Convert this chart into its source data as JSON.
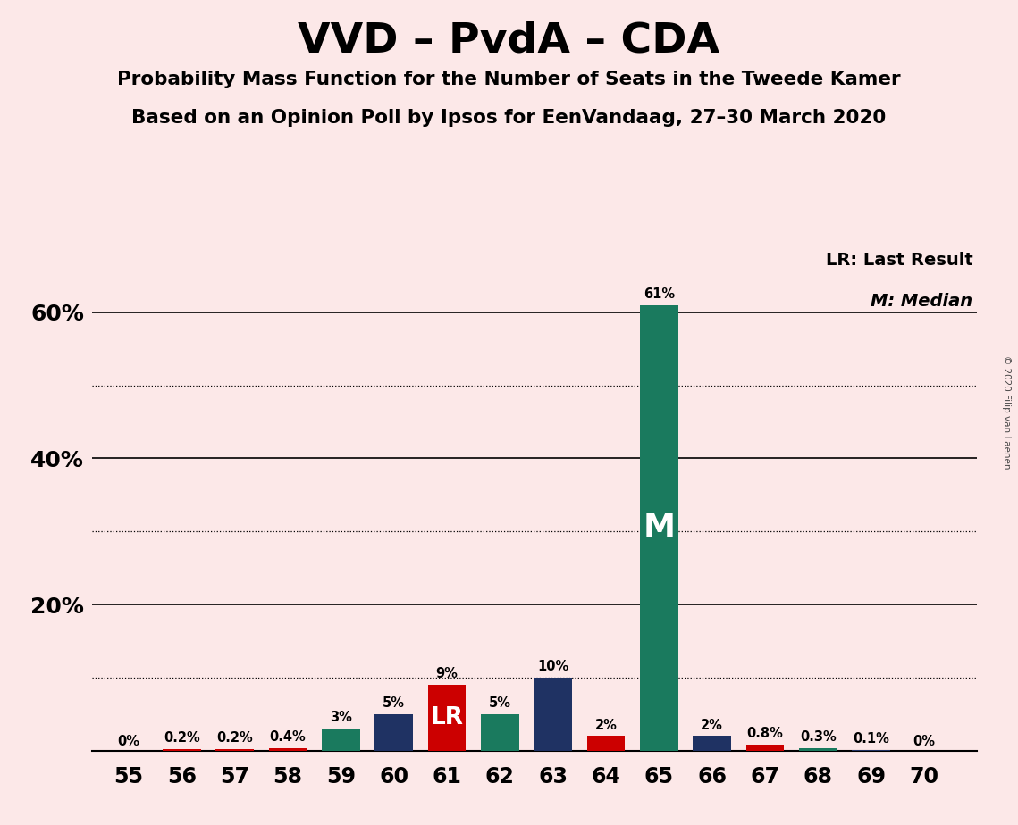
{
  "title": "VVD – PvdA – CDA",
  "subtitle1": "Probability Mass Function for the Number of Seats in the Tweede Kamer",
  "subtitle2": "Based on an Opinion Poll by Ipsos for EenVandaag, 27–30 March 2020",
  "copyright": "© 2020 Filip van Laenen",
  "seats": [
    55,
    56,
    57,
    58,
    59,
    60,
    61,
    62,
    63,
    64,
    65,
    66,
    67,
    68,
    69,
    70
  ],
  "probabilities": [
    0.0,
    0.2,
    0.2,
    0.4,
    3.0,
    5.0,
    9.0,
    5.0,
    10.0,
    2.0,
    61.0,
    2.0,
    0.8,
    0.3,
    0.1,
    0.0
  ],
  "bar_colors": [
    "#cc0000",
    "#cc0000",
    "#cc0000",
    "#cc0000",
    "#1a7a5e",
    "#1f3263",
    "#cc0000",
    "#1a7a5e",
    "#1f3263",
    "#cc0000",
    "#1a7a5e",
    "#1f3263",
    "#cc0000",
    "#1a7a5e",
    "#1f3263",
    "#cc0000"
  ],
  "label_texts": [
    "0%",
    "0.2%",
    "0.2%",
    "0.4%",
    "3%",
    "5%",
    "9%",
    "5%",
    "10%",
    "2%",
    "61%",
    "2%",
    "0.8%",
    "0.3%",
    "0.1%",
    "0%"
  ],
  "lr_seat": 61,
  "median_seat": 65,
  "ylim_max": 70,
  "ylines_solid": [
    20,
    40,
    60
  ],
  "ylines_dotted": [
    10,
    30,
    50
  ],
  "background_color": "#fce8e8",
  "color_teal": "#1a7a5e",
  "color_navy": "#1f3263",
  "color_red": "#cc0000",
  "legend_text1": "LR: Last Result",
  "legend_text2": "M: Median",
  "bar_width": 0.72
}
